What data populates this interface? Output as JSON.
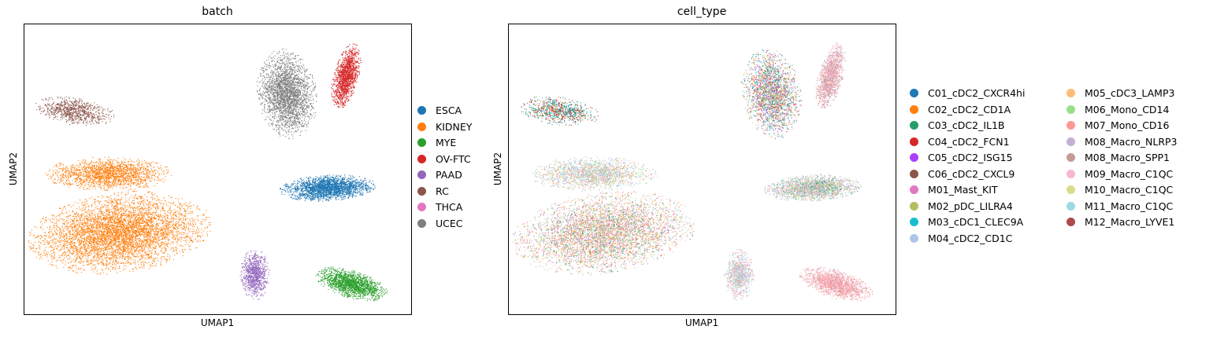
{
  "chart_data": [
    {
      "type": "scatter",
      "title": "batch",
      "xlabel": "UMAP1",
      "ylabel": "UMAP2",
      "grid": false,
      "legend_position": "right",
      "series": [
        {
          "name": "ESCA",
          "color": "#1f77b4"
        },
        {
          "name": "KIDNEY",
          "color": "#ff7f0e"
        },
        {
          "name": "MYE",
          "color": "#2ca02c"
        },
        {
          "name": "OV-FTC",
          "color": "#d62728"
        },
        {
          "name": "PAAD",
          "color": "#9467bd"
        },
        {
          "name": "RC",
          "color": "#8c564b"
        },
        {
          "name": "THCA",
          "color": "#e377c2"
        },
        {
          "name": "UCEC",
          "color": "#7f7f7f"
        }
      ]
    },
    {
      "type": "scatter",
      "title": "cell_type",
      "xlabel": "UMAP1",
      "ylabel": "UMAP2",
      "grid": false,
      "legend_position": "right",
      "series": [
        {
          "name": "C01_cDC2_CXCR4hi",
          "color": "#1f77b4"
        },
        {
          "name": "C02_cDC2_CD1A",
          "color": "#ff7f0e"
        },
        {
          "name": "C03_cDC2_IL1B",
          "color": "#279e68"
        },
        {
          "name": "C04_cDC2_FCN1",
          "color": "#d62728"
        },
        {
          "name": "C05_cDC2_ISG15",
          "color": "#aa40fc"
        },
        {
          "name": "C06_cDC2_CXCL9",
          "color": "#8c564b"
        },
        {
          "name": "M01_Mast_KIT",
          "color": "#e377c2"
        },
        {
          "name": "M02_pDC_LILRA4",
          "color": "#b5bd61"
        },
        {
          "name": "M03_cDC1_CLEC9A",
          "color": "#17becf"
        },
        {
          "name": "M04_cDC2_CD1C",
          "color": "#aec7e8"
        },
        {
          "name": "M05_cDC3_LAMP3",
          "color": "#ffbb78"
        },
        {
          "name": "M06_Mono_CD14",
          "color": "#98df8a"
        },
        {
          "name": "M07_Mono_CD16",
          "color": "#ff9896"
        },
        {
          "name": "M08_Macro_NLRP3",
          "color": "#c5b0d5"
        },
        {
          "name": "M08_Macro_SPP1",
          "color": "#c49c94"
        },
        {
          "name": "M09_Macro_C1QC",
          "color": "#f7b6d2"
        },
        {
          "name": "M10_Macro_C1QC",
          "color": "#dbdb8d"
        },
        {
          "name": "M11_Macro_C1QC",
          "color": "#9edae5"
        },
        {
          "name": "M12_Macro_LYVE1",
          "color": "#ad494a"
        }
      ]
    }
  ]
}
